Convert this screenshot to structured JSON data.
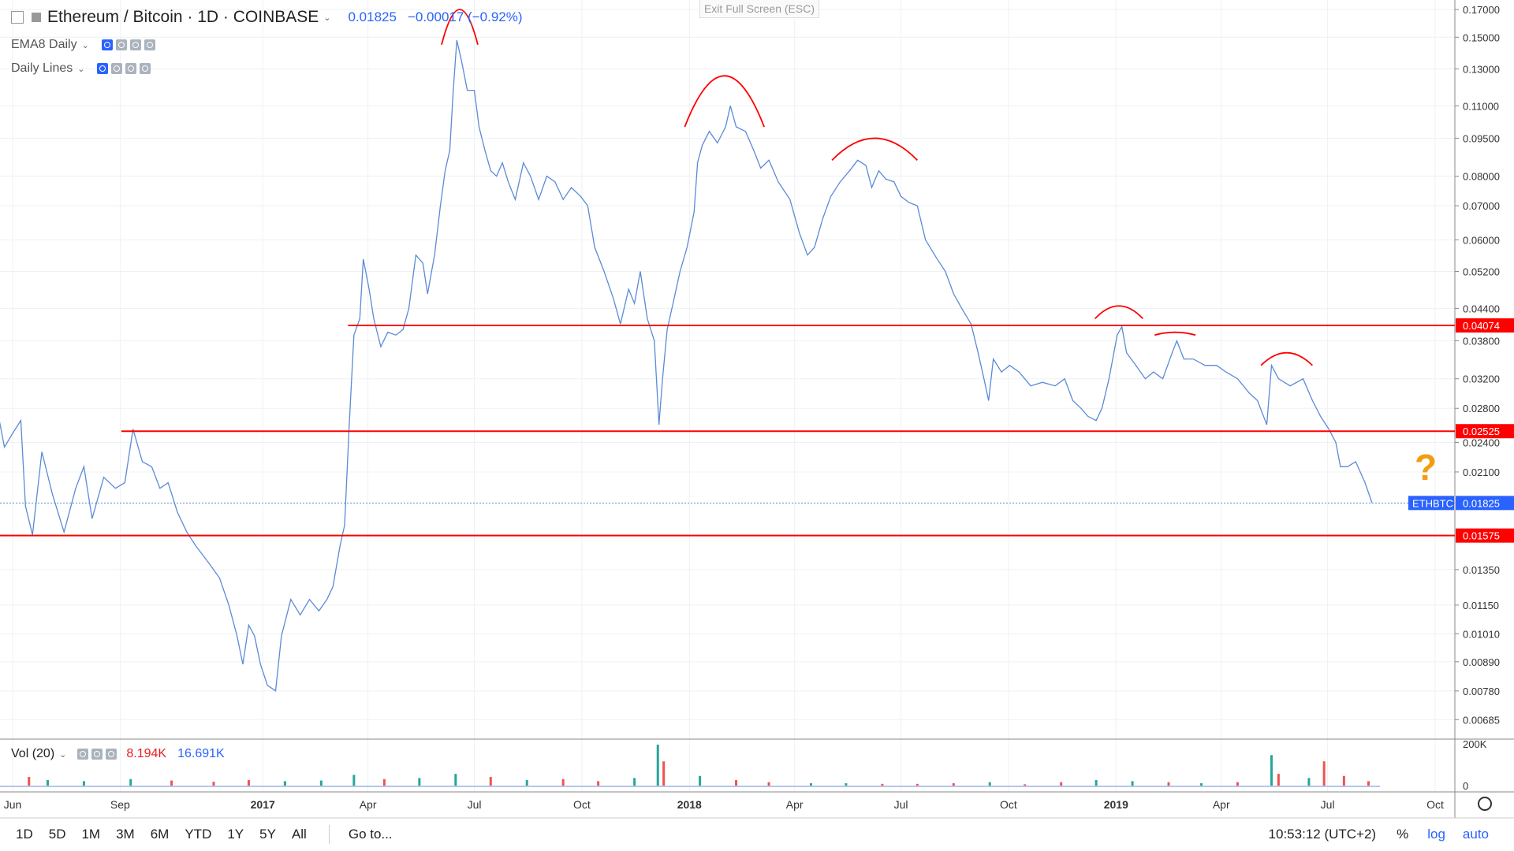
{
  "header": {
    "symbol": "Ethereum / Bitcoin · 1D · COINBASE",
    "last": "0.01825",
    "change": "−0.00017 (−0.92%)"
  },
  "indicators": [
    {
      "label": "EMA8 Daily"
    },
    {
      "label": "Daily Lines"
    }
  ],
  "exit_fullscreen": "Exit Full Screen (ESC)",
  "volume_panel": {
    "label": "Vol (20)",
    "v1": "8.194K",
    "v2": "16.691K",
    "axis": [
      "200K",
      "0"
    ]
  },
  "annotation": {
    "question": "?"
  },
  "bottom_bar": {
    "ranges": [
      "1D",
      "5D",
      "1M",
      "3M",
      "6M",
      "YTD",
      "1Y",
      "5Y",
      "All"
    ],
    "goto": "Go to...",
    "time": "10:53:12 (UTC+2)",
    "pct": "%",
    "log": "log",
    "auto": "auto"
  },
  "colors": {
    "line": "#5b8ad6",
    "hline": "#ff0000",
    "accent": "#2962ff",
    "question": "#f39c12"
  },
  "chart_data": {
    "type": "line",
    "scale": "log",
    "ylim": [
      0.0065,
      0.175
    ],
    "y_ticks": [
      0.17,
      0.15,
      0.13,
      0.11,
      0.095,
      0.08,
      0.07,
      0.06,
      0.052,
      0.044,
      0.038,
      0.032,
      0.028,
      0.024,
      0.021,
      0.0135,
      0.0115,
      0.0101,
      0.0089,
      0.0078,
      0.00685
    ],
    "y_tick_labels": [
      "0.17000",
      "0.15000",
      "0.13000",
      "0.11000",
      "0.09500",
      "0.08000",
      "0.07000",
      "0.06000",
      "0.05200",
      "0.04400",
      "0.03800",
      "0.03200",
      "0.02800",
      "0.02400",
      "0.02100",
      "0.01350",
      "0.01150",
      "0.01010",
      "0.00890",
      "0.00780",
      "0.00685"
    ],
    "x_ticks": [
      {
        "label": "Jun",
        "date": "2016-06-01"
      },
      {
        "label": "Sep",
        "date": "2016-09-01"
      },
      {
        "label": "2017",
        "date": "2017-01-01",
        "bold": true
      },
      {
        "label": "Apr",
        "date": "2017-04-01"
      },
      {
        "label": "Jul",
        "date": "2017-07-01"
      },
      {
        "label": "Oct",
        "date": "2017-10-01"
      },
      {
        "label": "2018",
        "date": "2018-01-01",
        "bold": true
      },
      {
        "label": "Apr",
        "date": "2018-04-01"
      },
      {
        "label": "Jul",
        "date": "2018-07-01"
      },
      {
        "label": "Oct",
        "date": "2018-10-01"
      },
      {
        "label": "2019",
        "date": "2019-01-01",
        "bold": true
      },
      {
        "label": "Apr",
        "date": "2019-04-01"
      },
      {
        "label": "Jul",
        "date": "2019-07-01"
      },
      {
        "label": "Oct",
        "date": "2019-10-01"
      }
    ],
    "series": [
      {
        "name": "ETHBTC",
        "points": [
          [
            "2016-05-18",
            0.0285
          ],
          [
            "2016-05-25",
            0.0235
          ],
          [
            "2016-06-01",
            0.025
          ],
          [
            "2016-06-08",
            0.0265
          ],
          [
            "2016-06-12",
            0.018
          ],
          [
            "2016-06-18",
            0.0158
          ],
          [
            "2016-06-26",
            0.023
          ],
          [
            "2016-07-05",
            0.019
          ],
          [
            "2016-07-15",
            0.016
          ],
          [
            "2016-07-25",
            0.0195
          ],
          [
            "2016-08-01",
            0.0215
          ],
          [
            "2016-08-08",
            0.017
          ],
          [
            "2016-08-18",
            0.0205
          ],
          [
            "2016-08-28",
            0.0195
          ],
          [
            "2016-09-05",
            0.02
          ],
          [
            "2016-09-12",
            0.0255
          ],
          [
            "2016-09-20",
            0.022
          ],
          [
            "2016-09-28",
            0.0215
          ],
          [
            "2016-10-05",
            0.0195
          ],
          [
            "2016-10-12",
            0.02
          ],
          [
            "2016-10-20",
            0.0175
          ],
          [
            "2016-10-28",
            0.016
          ],
          [
            "2016-11-05",
            0.015
          ],
          [
            "2016-11-15",
            0.014
          ],
          [
            "2016-11-25",
            0.013
          ],
          [
            "2016-12-03",
            0.0115
          ],
          [
            "2016-12-10",
            0.01
          ],
          [
            "2016-12-15",
            0.0088
          ],
          [
            "2016-12-20",
            0.0105
          ],
          [
            "2016-12-25",
            0.01
          ],
          [
            "2016-12-30",
            0.0088
          ],
          [
            "2017-01-05",
            0.008
          ],
          [
            "2017-01-12",
            0.0078
          ],
          [
            "2017-01-17",
            0.01
          ],
          [
            "2017-01-25",
            0.0118
          ],
          [
            "2017-02-02",
            0.011
          ],
          [
            "2017-02-10",
            0.0118
          ],
          [
            "2017-02-18",
            0.0112
          ],
          [
            "2017-02-25",
            0.0118
          ],
          [
            "2017-03-02",
            0.0125
          ],
          [
            "2017-03-08",
            0.015
          ],
          [
            "2017-03-12",
            0.0165
          ],
          [
            "2017-03-16",
            0.026
          ],
          [
            "2017-03-20",
            0.039
          ],
          [
            "2017-03-25",
            0.042
          ],
          [
            "2017-03-28",
            0.055
          ],
          [
            "2017-04-02",
            0.048
          ],
          [
            "2017-04-06",
            0.042
          ],
          [
            "2017-04-12",
            0.037
          ],
          [
            "2017-04-18",
            0.0395
          ],
          [
            "2017-04-25",
            0.039
          ],
          [
            "2017-05-01",
            0.04
          ],
          [
            "2017-05-06",
            0.044
          ],
          [
            "2017-05-12",
            0.056
          ],
          [
            "2017-05-18",
            0.054
          ],
          [
            "2017-05-22",
            0.047
          ],
          [
            "2017-05-28",
            0.056
          ],
          [
            "2017-06-02",
            0.07
          ],
          [
            "2017-06-06",
            0.082
          ],
          [
            "2017-06-10",
            0.09
          ],
          [
            "2017-06-13",
            0.118
          ],
          [
            "2017-06-16",
            0.148
          ],
          [
            "2017-06-20",
            0.135
          ],
          [
            "2017-06-25",
            0.118
          ],
          [
            "2017-07-01",
            0.118
          ],
          [
            "2017-07-05",
            0.1
          ],
          [
            "2017-07-10",
            0.09
          ],
          [
            "2017-07-15",
            0.082
          ],
          [
            "2017-07-20",
            0.08
          ],
          [
            "2017-07-25",
            0.085
          ],
          [
            "2017-07-30",
            0.078
          ],
          [
            "2017-08-05",
            0.072
          ],
          [
            "2017-08-12",
            0.085
          ],
          [
            "2017-08-18",
            0.08
          ],
          [
            "2017-08-25",
            0.072
          ],
          [
            "2017-09-01",
            0.08
          ],
          [
            "2017-09-08",
            0.078
          ],
          [
            "2017-09-15",
            0.072
          ],
          [
            "2017-09-22",
            0.076
          ],
          [
            "2017-09-30",
            0.073
          ],
          [
            "2017-10-06",
            0.07
          ],
          [
            "2017-10-12",
            0.058
          ],
          [
            "2017-10-20",
            0.052
          ],
          [
            "2017-10-28",
            0.046
          ],
          [
            "2017-11-03",
            0.041
          ],
          [
            "2017-11-10",
            0.048
          ],
          [
            "2017-11-15",
            0.045
          ],
          [
            "2017-11-20",
            0.052
          ],
          [
            "2017-11-26",
            0.042
          ],
          [
            "2017-12-02",
            0.038
          ],
          [
            "2017-12-06",
            0.026
          ],
          [
            "2017-12-09",
            0.032
          ],
          [
            "2017-12-13",
            0.04
          ],
          [
            "2017-12-18",
            0.045
          ],
          [
            "2017-12-24",
            0.052
          ],
          [
            "2017-12-30",
            0.058
          ],
          [
            "2018-01-05",
            0.068
          ],
          [
            "2018-01-08",
            0.085
          ],
          [
            "2018-01-12",
            0.092
          ],
          [
            "2018-01-18",
            0.098
          ],
          [
            "2018-01-25",
            0.093
          ],
          [
            "2018-02-01",
            0.1
          ],
          [
            "2018-02-05",
            0.11
          ],
          [
            "2018-02-10",
            0.1
          ],
          [
            "2018-02-18",
            0.098
          ],
          [
            "2018-02-25",
            0.09
          ],
          [
            "2018-03-03",
            0.083
          ],
          [
            "2018-03-10",
            0.086
          ],
          [
            "2018-03-18",
            0.078
          ],
          [
            "2018-03-28",
            0.072
          ],
          [
            "2018-04-05",
            0.062
          ],
          [
            "2018-04-12",
            0.056
          ],
          [
            "2018-04-18",
            0.058
          ],
          [
            "2018-04-25",
            0.066
          ],
          [
            "2018-05-02",
            0.073
          ],
          [
            "2018-05-10",
            0.078
          ],
          [
            "2018-05-18",
            0.082
          ],
          [
            "2018-05-25",
            0.086
          ],
          [
            "2018-06-01",
            0.084
          ],
          [
            "2018-06-06",
            0.076
          ],
          [
            "2018-06-12",
            0.082
          ],
          [
            "2018-06-18",
            0.079
          ],
          [
            "2018-06-25",
            0.078
          ],
          [
            "2018-07-01",
            0.073
          ],
          [
            "2018-07-08",
            0.071
          ],
          [
            "2018-07-15",
            0.07
          ],
          [
            "2018-07-22",
            0.06
          ],
          [
            "2018-08-01",
            0.055
          ],
          [
            "2018-08-08",
            0.052
          ],
          [
            "2018-08-15",
            0.047
          ],
          [
            "2018-08-22",
            0.044
          ],
          [
            "2018-08-30",
            0.041
          ],
          [
            "2018-09-05",
            0.036
          ],
          [
            "2018-09-10",
            0.032
          ],
          [
            "2018-09-14",
            0.029
          ],
          [
            "2018-09-18",
            0.035
          ],
          [
            "2018-09-25",
            0.033
          ],
          [
            "2018-10-02",
            0.034
          ],
          [
            "2018-10-10",
            0.033
          ],
          [
            "2018-10-20",
            0.031
          ],
          [
            "2018-10-30",
            0.0315
          ],
          [
            "2018-11-10",
            0.031
          ],
          [
            "2018-11-18",
            0.032
          ],
          [
            "2018-11-25",
            0.029
          ],
          [
            "2018-12-02",
            0.028
          ],
          [
            "2018-12-08",
            0.027
          ],
          [
            "2018-12-15",
            0.0265
          ],
          [
            "2018-12-20",
            0.028
          ],
          [
            "2018-12-26",
            0.032
          ],
          [
            "2019-01-02",
            0.039
          ],
          [
            "2019-01-06",
            0.0405
          ],
          [
            "2019-01-10",
            0.036
          ],
          [
            "2019-01-18",
            0.034
          ],
          [
            "2019-01-26",
            0.032
          ],
          [
            "2019-02-02",
            0.033
          ],
          [
            "2019-02-10",
            0.032
          ],
          [
            "2019-02-18",
            0.036
          ],
          [
            "2019-02-22",
            0.038
          ],
          [
            "2019-02-28",
            0.035
          ],
          [
            "2019-03-08",
            0.035
          ],
          [
            "2019-03-18",
            0.034
          ],
          [
            "2019-03-28",
            0.034
          ],
          [
            "2019-04-05",
            0.033
          ],
          [
            "2019-04-15",
            0.032
          ],
          [
            "2019-04-25",
            0.03
          ],
          [
            "2019-05-02",
            0.029
          ],
          [
            "2019-05-10",
            0.026
          ],
          [
            "2019-05-14",
            0.034
          ],
          [
            "2019-05-20",
            0.032
          ],
          [
            "2019-05-30",
            0.031
          ],
          [
            "2019-06-10",
            0.032
          ],
          [
            "2019-06-18",
            0.029
          ],
          [
            "2019-06-25",
            0.027
          ],
          [
            "2019-07-02",
            0.0255
          ],
          [
            "2019-07-08",
            0.024
          ],
          [
            "2019-07-12",
            0.0215
          ],
          [
            "2019-07-18",
            0.0215
          ],
          [
            "2019-07-25",
            0.022
          ],
          [
            "2019-08-02",
            0.02
          ],
          [
            "2019-08-08",
            0.01825
          ]
        ]
      }
    ],
    "horizontal_lines": [
      {
        "value": 0.04074,
        "label": "0.04074",
        "from": "2017-03-15"
      },
      {
        "value": 0.02525,
        "label": "0.02525",
        "from": "2016-09-02"
      },
      {
        "value": 0.01575,
        "label": "0.01575",
        "from": "2016-05-20"
      }
    ],
    "last_price": {
      "value": 0.01825,
      "label": "0.01825",
      "name": "ETHBTC"
    },
    "arcs": [
      {
        "from": "2017-06-03",
        "to": "2017-07-04",
        "base": 0.145,
        "peak": 0.17
      },
      {
        "from": "2017-12-28",
        "to": "2018-03-06",
        "base": 0.1,
        "peak": 0.126
      },
      {
        "from": "2018-05-03",
        "to": "2018-07-15",
        "base": 0.086,
        "peak": 0.095
      },
      {
        "from": "2018-12-14",
        "to": "2019-01-24",
        "base": 0.042,
        "peak": 0.0445
      },
      {
        "from": "2019-02-03",
        "to": "2019-03-10",
        "base": 0.039,
        "peak": 0.0395
      },
      {
        "from": "2019-05-05",
        "to": "2019-06-18",
        "base": 0.034,
        "peak": 0.036
      }
    ],
    "volume": {
      "max": 200000,
      "bars": [
        [
          "2016-06-15",
          45000,
          "red"
        ],
        [
          "2016-07-01",
          30000,
          "green"
        ],
        [
          "2016-08-01",
          25000,
          "green"
        ],
        [
          "2016-09-10",
          35000,
          "green"
        ],
        [
          "2016-10-15",
          28000,
          "red"
        ],
        [
          "2016-11-20",
          22000,
          "red"
        ],
        [
          "2016-12-20",
          30000,
          "red"
        ],
        [
          "2017-01-20",
          25000,
          "green"
        ],
        [
          "2017-02-20",
          28000,
          "green"
        ],
        [
          "2017-03-20",
          55000,
          "green"
        ],
        [
          "2017-04-15",
          35000,
          "red"
        ],
        [
          "2017-05-15",
          40000,
          "green"
        ],
        [
          "2017-06-15",
          60000,
          "green"
        ],
        [
          "2017-07-15",
          45000,
          "red"
        ],
        [
          "2017-08-15",
          30000,
          "green"
        ],
        [
          "2017-09-15",
          35000,
          "red"
        ],
        [
          "2017-10-15",
          25000,
          "red"
        ],
        [
          "2017-11-15",
          40000,
          "green"
        ],
        [
          "2017-12-05",
          200000,
          "green"
        ],
        [
          "2017-12-10",
          120000,
          "red"
        ],
        [
          "2018-01-10",
          50000,
          "green"
        ],
        [
          "2018-02-10",
          30000,
          "red"
        ],
        [
          "2018-03-10",
          20000,
          "red"
        ],
        [
          "2018-04-15",
          15000,
          "green"
        ],
        [
          "2018-05-15",
          15000,
          "green"
        ],
        [
          "2018-06-15",
          12000,
          "red"
        ],
        [
          "2018-07-15",
          12000,
          "red"
        ],
        [
          "2018-08-15",
          15000,
          "red"
        ],
        [
          "2018-09-15",
          20000,
          "green"
        ],
        [
          "2018-10-15",
          10000,
          "red"
        ],
        [
          "2018-11-15",
          20000,
          "red"
        ],
        [
          "2018-12-15",
          30000,
          "green"
        ],
        [
          "2019-01-15",
          25000,
          "green"
        ],
        [
          "2019-02-15",
          20000,
          "red"
        ],
        [
          "2019-03-15",
          15000,
          "green"
        ],
        [
          "2019-04-15",
          20000,
          "red"
        ],
        [
          "2019-05-14",
          150000,
          "green"
        ],
        [
          "2019-05-20",
          60000,
          "red"
        ],
        [
          "2019-06-15",
          40000,
          "green"
        ],
        [
          "2019-06-28",
          120000,
          "red"
        ],
        [
          "2019-07-15",
          50000,
          "red"
        ],
        [
          "2019-08-05",
          25000,
          "red"
        ]
      ]
    }
  }
}
